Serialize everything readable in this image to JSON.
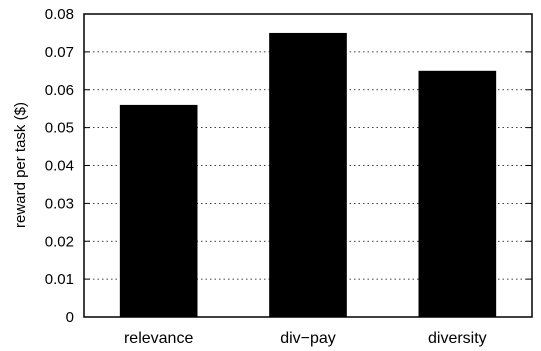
{
  "chart_data": {
    "type": "bar",
    "categories": [
      "relevance",
      "div−pay",
      "diversity"
    ],
    "values": [
      0.056,
      0.075,
      0.065
    ],
    "title": "",
    "xlabel": "",
    "ylabel": "reward per task ($)",
    "ylim": [
      0,
      0.08
    ],
    "yticks": [
      "0",
      "0.01",
      "0.02",
      "0.03",
      "0.04",
      "0.05",
      "0.06",
      "0.07",
      "0.08"
    ],
    "grid": "horizontal dotted",
    "bar_color": "#000000"
  }
}
